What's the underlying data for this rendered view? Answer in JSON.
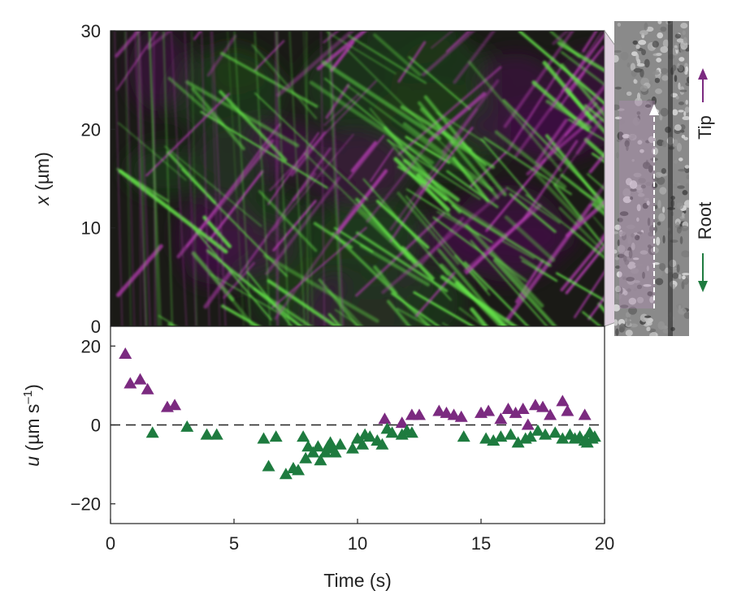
{
  "colors": {
    "tip": "#7b2a80",
    "root": "#1e7b3f",
    "kymo_green": "#66e84a",
    "kymo_magenta": "#b33cb0"
  },
  "chart_data": [
    {
      "type": "heatmap",
      "ylabel_var": "x",
      "ylabel_unit": "(µm)",
      "ylim": [
        0,
        30
      ],
      "xlim": [
        0,
        20
      ],
      "yticks": [
        "0",
        "10",
        "20",
        "30"
      ],
      "channels": [
        "green",
        "magenta"
      ],
      "inset": {
        "tip_label": "Tip",
        "root_label": "Root"
      }
    },
    {
      "type": "scatter",
      "xlabel": "Time (s)",
      "ylabel_var": "u",
      "ylabel_unit": "(µm s",
      "ylabel_exp": "–1",
      "ylabel_close": ")",
      "xlim": [
        0,
        20
      ],
      "ylim": [
        -25,
        25
      ],
      "xticks": [
        "0",
        "5",
        "10",
        "15",
        "20"
      ],
      "yticks": [
        {
          "value": 20,
          "label": "20"
        },
        {
          "value": 0,
          "label": "0"
        },
        {
          "value": -20,
          "label": "−20"
        }
      ],
      "reference_line": 0,
      "series": [
        {
          "color": "#7b2a80",
          "points": [
            [
              0.6,
              18
            ],
            [
              0.8,
              10.5
            ],
            [
              1.2,
              11.5
            ],
            [
              1.5,
              9
            ],
            [
              2.3,
              4.5
            ],
            [
              2.6,
              5
            ],
            [
              11.1,
              1.5
            ],
            [
              11.8,
              0.5
            ],
            [
              12.2,
              2.5
            ],
            [
              12.5,
              2.5
            ],
            [
              13.3,
              3.5
            ],
            [
              13.6,
              3
            ],
            [
              13.9,
              2.5
            ],
            [
              14.2,
              2
            ],
            [
              15.0,
              3
            ],
            [
              15.3,
              3.5
            ],
            [
              15.8,
              1.5
            ],
            [
              16.1,
              4
            ],
            [
              16.4,
              3
            ],
            [
              16.7,
              4
            ],
            [
              16.9,
              0
            ],
            [
              17.2,
              5
            ],
            [
              17.5,
              4.5
            ],
            [
              17.8,
              2.5
            ],
            [
              18.3,
              6
            ],
            [
              18.5,
              3.5
            ],
            [
              19.2,
              2.5
            ]
          ]
        },
        {
          "color": "#1e7b3f",
          "points": [
            [
              1.7,
              -2
            ],
            [
              3.1,
              -0.5
            ],
            [
              3.9,
              -2.5
            ],
            [
              4.3,
              -2.5
            ],
            [
              6.2,
              -3.5
            ],
            [
              6.7,
              -3
            ],
            [
              6.4,
              -10.5
            ],
            [
              7.1,
              -12.5
            ],
            [
              7.4,
              -11
            ],
            [
              7.6,
              -11.5
            ],
            [
              7.8,
              -3
            ],
            [
              7.9,
              -8.5
            ],
            [
              8.0,
              -5.5
            ],
            [
              8.2,
              -7
            ],
            [
              8.4,
              -5.5
            ],
            [
              8.5,
              -9
            ],
            [
              8.7,
              -7
            ],
            [
              8.8,
              -5.5
            ],
            [
              8.9,
              -4.5
            ],
            [
              9.0,
              -6
            ],
            [
              9.1,
              -7
            ],
            [
              9.3,
              -5
            ],
            [
              9.8,
              -6
            ],
            [
              10.0,
              -3.5
            ],
            [
              10.2,
              -5
            ],
            [
              10.3,
              -2.5
            ],
            [
              10.5,
              -3
            ],
            [
              10.8,
              -4
            ],
            [
              11.0,
              -5
            ],
            [
              11.2,
              -1
            ],
            [
              11.4,
              -2
            ],
            [
              11.8,
              -2.5
            ],
            [
              12.0,
              -1.5
            ],
            [
              12.2,
              -2
            ],
            [
              14.3,
              -3
            ],
            [
              15.2,
              -3.5
            ],
            [
              15.5,
              -4
            ],
            [
              15.8,
              -3
            ],
            [
              16.2,
              -2.5
            ],
            [
              16.5,
              -4.5
            ],
            [
              16.8,
              -3.5
            ],
            [
              17.0,
              -3
            ],
            [
              17.3,
              -1.5
            ],
            [
              17.6,
              -2.5
            ],
            [
              18.0,
              -2
            ],
            [
              18.3,
              -3.5
            ],
            [
              18.6,
              -2.5
            ],
            [
              18.8,
              -3.5
            ],
            [
              19.0,
              -3
            ],
            [
              19.2,
              -4
            ],
            [
              19.4,
              -2
            ],
            [
              19.5,
              -3.5
            ],
            [
              19.3,
              -4.5
            ],
            [
              19.6,
              -3
            ]
          ]
        }
      ]
    }
  ]
}
